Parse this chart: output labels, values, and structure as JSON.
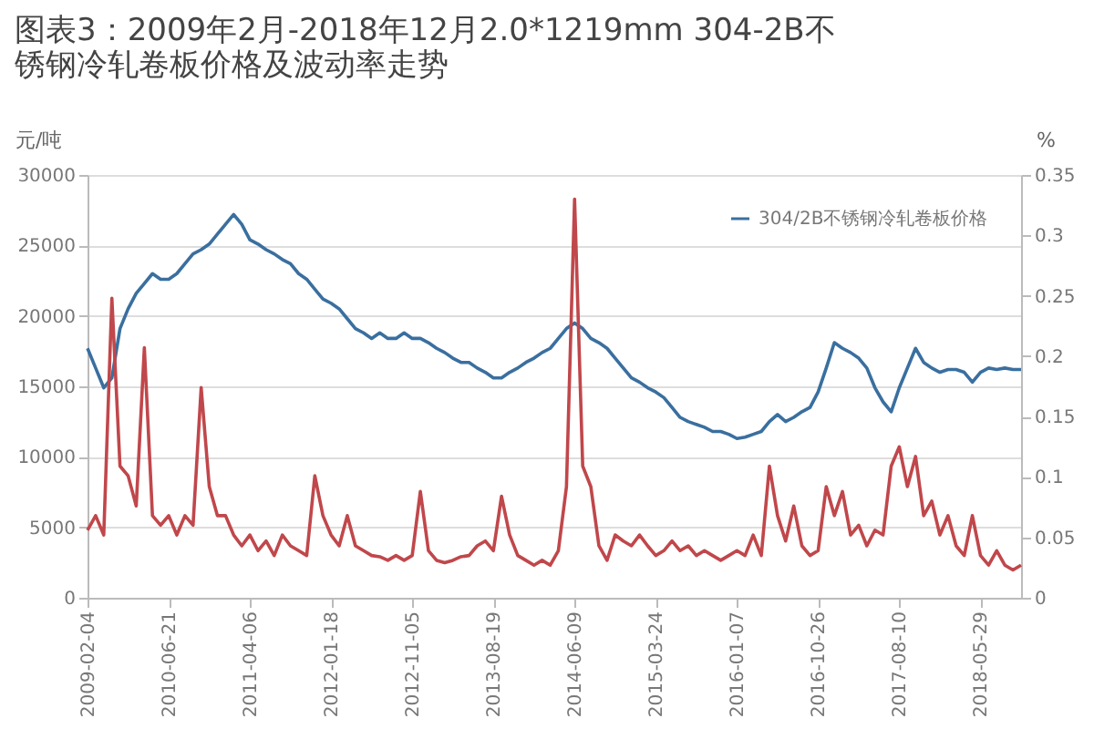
{
  "chart_data": {
    "type": "line",
    "title": "图表3：2009年2月-2018年12月2.0*1219mm 304-2B不锈钢冷轧卷板价格及波动率走势",
    "ylabel": "元/吨",
    "y2label": "%",
    "categories": [
      "2009-02-04",
      null,
      null,
      null,
      null,
      null,
      null,
      null,
      null,
      null,
      "2010-06-21",
      null,
      null,
      null,
      null,
      null,
      null,
      null,
      null,
      null,
      "2011-04-06",
      null,
      null,
      null,
      null,
      null,
      null,
      null,
      null,
      null,
      "2012-01-18",
      null,
      null,
      null,
      null,
      null,
      null,
      null,
      null,
      null,
      "2012-11-05",
      null,
      null,
      null,
      null,
      null,
      null,
      null,
      null,
      null,
      "2013-08-19",
      null,
      null,
      null,
      null,
      null,
      null,
      null,
      null,
      null,
      "2014-06-09",
      null,
      null,
      null,
      null,
      null,
      null,
      null,
      null,
      null,
      "2015-03-24",
      null,
      null,
      null,
      null,
      null,
      null,
      null,
      null,
      null,
      "2016-01-07",
      null,
      null,
      null,
      null,
      null,
      null,
      null,
      null,
      null,
      "2016-10-26",
      null,
      null,
      null,
      null,
      null,
      null,
      null,
      null,
      null,
      "2017-08-10",
      null,
      null,
      null,
      null,
      null,
      null,
      null,
      null,
      null,
      "2018-05-29",
      null,
      null,
      null,
      null,
      null
    ],
    "series": [
      {
        "name": "304/2B不锈钢冷轧卷板价格",
        "color": "#3a6f9f",
        "values": [
          17700,
          16300,
          14900,
          15600,
          19100,
          20500,
          21600,
          22300,
          23000,
          22600,
          22600,
          23000,
          23700,
          24400,
          24700,
          25100,
          25800,
          26500,
          27200,
          26500,
          25400,
          25100,
          24700,
          24400,
          24000,
          23700,
          23000,
          22600,
          21900,
          21200,
          20900,
          20500,
          19800,
          19100,
          18800,
          18400,
          18800,
          18400,
          18400,
          18800,
          18400,
          18400,
          18100,
          17700,
          17400,
          17000,
          16700,
          16700,
          16300,
          16000,
          15600,
          15600,
          16000,
          16300,
          16700,
          17000,
          17400,
          17700,
          18400,
          19100,
          19500,
          19100,
          18400,
          18100,
          17700,
          17000,
          16300,
          15600,
          15300,
          14900,
          14600,
          14200,
          13500,
          12800,
          12500,
          12300,
          12100,
          11800,
          11800,
          11600,
          11300,
          11400,
          11600,
          11800,
          12500,
          13000,
          12500,
          12800,
          13200,
          13500,
          14600,
          16300,
          18100,
          17700,
          17400,
          17000,
          16300,
          14900,
          13900,
          13200,
          14900,
          16300,
          17700,
          16700,
          16300,
          16000,
          16200,
          16200,
          16000,
          15300,
          16000,
          16300,
          16200,
          16300,
          16200,
          16200
        ]
      },
      {
        "color": "#c0474b",
        "axis": "y2",
        "values": [
          0.056,
          0.068,
          0.052,
          0.248,
          0.109,
          0.101,
          0.076,
          0.207,
          0.068,
          0.06,
          0.068,
          0.052,
          0.068,
          0.06,
          0.174,
          0.092,
          0.068,
          0.068,
          0.052,
          0.043,
          0.052,
          0.039,
          0.047,
          0.035,
          0.052,
          0.043,
          0.039,
          0.035,
          0.101,
          0.068,
          0.052,
          0.043,
          0.068,
          0.043,
          0.039,
          0.035,
          0.034,
          0.031,
          0.035,
          0.031,
          0.035,
          0.088,
          0.039,
          0.031,
          0.029,
          0.031,
          0.034,
          0.035,
          0.043,
          0.047,
          0.039,
          0.084,
          0.052,
          0.035,
          0.031,
          0.027,
          0.031,
          0.027,
          0.039,
          0.092,
          0.33,
          0.109,
          0.092,
          0.043,
          0.031,
          0.052,
          0.047,
          0.043,
          0.052,
          0.043,
          0.035,
          0.039,
          0.047,
          0.039,
          0.043,
          0.035,
          0.039,
          0.035,
          0.031,
          0.035,
          0.039,
          0.035,
          0.052,
          0.035,
          0.109,
          0.068,
          0.047,
          0.076,
          0.043,
          0.035,
          0.039,
          0.092,
          0.068,
          0.088,
          0.052,
          0.06,
          0.043,
          0.056,
          0.052,
          0.109,
          0.125,
          0.092,
          0.117,
          0.068,
          0.08,
          0.052,
          0.068,
          0.043,
          0.035,
          0.068,
          0.035,
          0.027,
          0.039,
          0.027,
          0.023,
          0.027
        ]
      }
    ],
    "ylim": [
      0,
      30000
    ],
    "yticks": [
      0,
      5000,
      10000,
      15000,
      20000,
      25000,
      30000
    ],
    "y2lim": [
      0,
      0.35
    ],
    "y2ticks": [
      0,
      0.05,
      0.1,
      0.15,
      0.2,
      0.25,
      0.3,
      0.35
    ],
    "grid": "y",
    "legend": "top right"
  }
}
